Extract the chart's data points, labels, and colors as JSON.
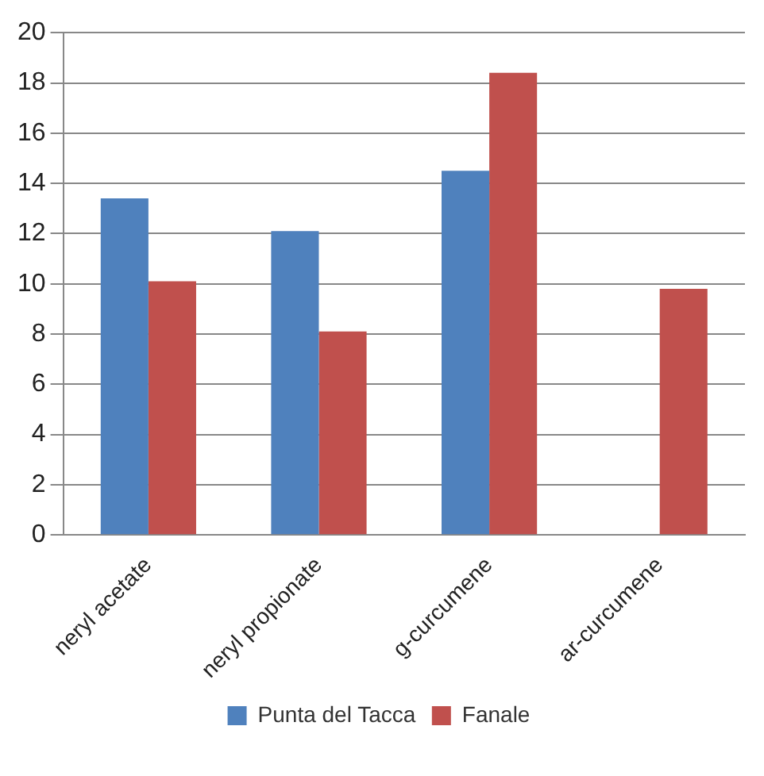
{
  "chart_data": {
    "type": "bar",
    "categories": [
      "neryl acetate",
      "neryl propionate",
      "g-curcumene",
      "ar-curcumene"
    ],
    "series": [
      {
        "name": "Punta del Tacca",
        "color": "#4f81bd",
        "values": [
          13.4,
          12.1,
          14.5,
          null
        ]
      },
      {
        "name": "Fanale",
        "color": "#c0504d",
        "values": [
          10.1,
          8.1,
          18.4,
          9.8
        ]
      }
    ],
    "ylim": [
      0,
      20
    ],
    "yticks": [
      0,
      2,
      4,
      6,
      8,
      10,
      12,
      14,
      16,
      18,
      20
    ],
    "grid": "y",
    "legend": "bottom"
  }
}
